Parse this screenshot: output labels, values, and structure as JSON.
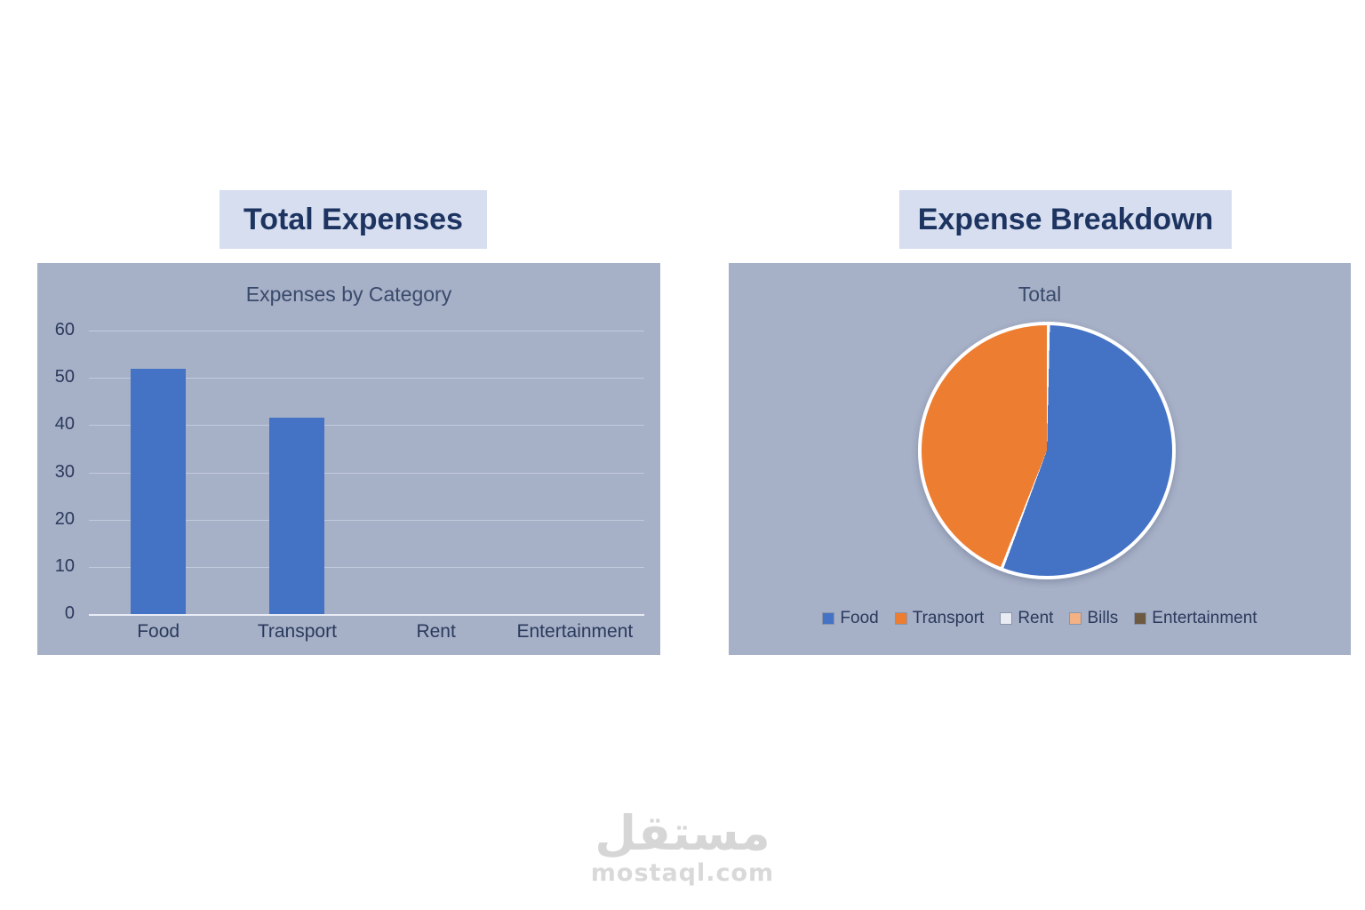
{
  "headers": {
    "left": "Total Expenses",
    "right": "Expense Breakdown"
  },
  "watermark": {
    "logo": "مستقل",
    "domain": "mostaql.com"
  },
  "colors": {
    "header_bg": "#d7def0",
    "header_text": "#1d3461",
    "panel_bg": "#a6b0c7",
    "grid_line": "#c3cbdd",
    "bar": "#4472c4",
    "pie_blue": "#4472c4",
    "pie_orange": "#ed7d31"
  },
  "chart_data": [
    {
      "type": "bar",
      "title": "Expenses by Category",
      "categories": [
        "Food",
        "Transport",
        "Rent",
        "Entertainment"
      ],
      "values": [
        52,
        41.5,
        0,
        0
      ],
      "xlabel": "",
      "ylabel": "",
      "ylim": [
        0,
        60
      ],
      "yticks": [
        0,
        10,
        20,
        30,
        40,
        50,
        60
      ],
      "grid": true,
      "legend": false,
      "bar_color": "#4472c4"
    },
    {
      "type": "pie",
      "title": "Total",
      "labels": [
        "Food",
        "Transport",
        "Rent",
        "Bills",
        "Entertainment"
      ],
      "values": [
        52,
        41.5,
        0,
        0,
        0
      ],
      "colors": [
        "#4472c4",
        "#ed7d31",
        "#e9ecf2",
        "#f4b183",
        "#6e5a41"
      ],
      "legend_position": "bottom"
    }
  ]
}
